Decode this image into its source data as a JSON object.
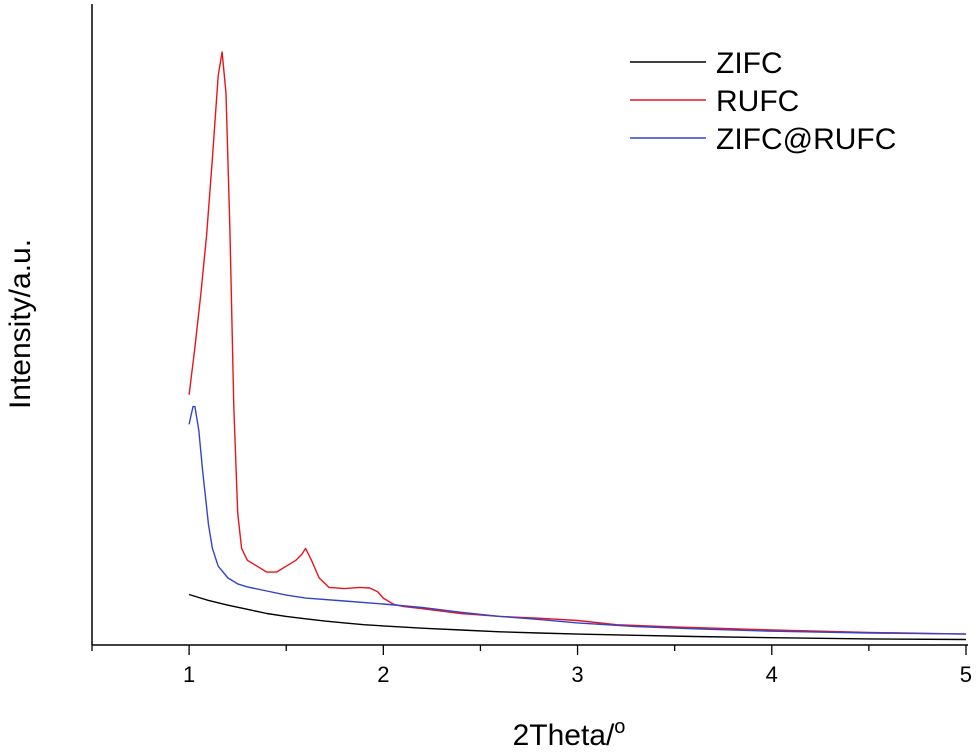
{
  "chart_data": {
    "type": "line",
    "title": "",
    "xlabel": "2Theta/",
    "xlabel_sup": "o",
    "ylabel": "Intensity/a.u.",
    "xlim": [
      0.5,
      5
    ],
    "ylim": [
      0,
      1
    ],
    "x_ticks": [
      1,
      2,
      3,
      4,
      5
    ],
    "x_tick_labels": [
      "1",
      "2",
      "3",
      "4",
      "5"
    ],
    "y_ticks_shown": false,
    "grid": false,
    "legend_position": "top-right",
    "series": [
      {
        "name": "ZIFC",
        "color": "#000000",
        "x": [
          1.0,
          1.05,
          1.1,
          1.15,
          1.2,
          1.3,
          1.4,
          1.5,
          1.6,
          1.7,
          1.8,
          1.9,
          2.0,
          2.2,
          2.4,
          2.6,
          2.8,
          3.0,
          3.3,
          3.6,
          4.0,
          4.5,
          5.0
        ],
        "y": [
          0.082,
          0.077,
          0.072,
          0.068,
          0.064,
          0.057,
          0.05,
          0.045,
          0.041,
          0.037,
          0.034,
          0.031,
          0.029,
          0.025,
          0.022,
          0.019,
          0.017,
          0.015,
          0.013,
          0.011,
          0.009,
          0.007,
          0.006
        ]
      },
      {
        "name": "RUFC",
        "color": "#e8141c",
        "x": [
          1.0,
          1.03,
          1.06,
          1.09,
          1.12,
          1.15,
          1.17,
          1.19,
          1.21,
          1.23,
          1.25,
          1.27,
          1.3,
          1.35,
          1.4,
          1.45,
          1.5,
          1.55,
          1.58,
          1.6,
          1.63,
          1.67,
          1.72,
          1.8,
          1.88,
          1.93,
          1.97,
          2.0,
          2.05,
          2.1,
          2.2,
          2.4,
          2.6,
          2.8,
          3.0,
          3.2,
          3.5,
          4.0,
          4.5,
          5.0
        ],
        "y": [
          0.42,
          0.5,
          0.59,
          0.69,
          0.82,
          0.96,
          1.0,
          0.93,
          0.7,
          0.4,
          0.22,
          0.16,
          0.14,
          0.13,
          0.12,
          0.12,
          0.13,
          0.14,
          0.15,
          0.16,
          0.14,
          0.11,
          0.094,
          0.092,
          0.094,
          0.093,
          0.087,
          0.076,
          0.066,
          0.062,
          0.058,
          0.05,
          0.045,
          0.042,
          0.038,
          0.031,
          0.027,
          0.022,
          0.018,
          0.015
        ]
      },
      {
        "name": "ZIFC@RUFC",
        "color": "#3344cc",
        "x": [
          1.0,
          1.02,
          1.03,
          1.05,
          1.07,
          1.09,
          1.1,
          1.12,
          1.15,
          1.2,
          1.25,
          1.3,
          1.4,
          1.5,
          1.6,
          1.8,
          2.0,
          2.2,
          2.4,
          2.6,
          2.8,
          3.0,
          3.3,
          3.6,
          4.0,
          4.5,
          5.0
        ],
        "y": [
          0.37,
          0.4,
          0.4,
          0.36,
          0.29,
          0.23,
          0.2,
          0.16,
          0.13,
          0.11,
          0.1,
          0.095,
          0.088,
          0.081,
          0.076,
          0.071,
          0.066,
          0.06,
          0.052,
          0.045,
          0.04,
          0.034,
          0.028,
          0.024,
          0.02,
          0.017,
          0.015
        ]
      }
    ]
  }
}
